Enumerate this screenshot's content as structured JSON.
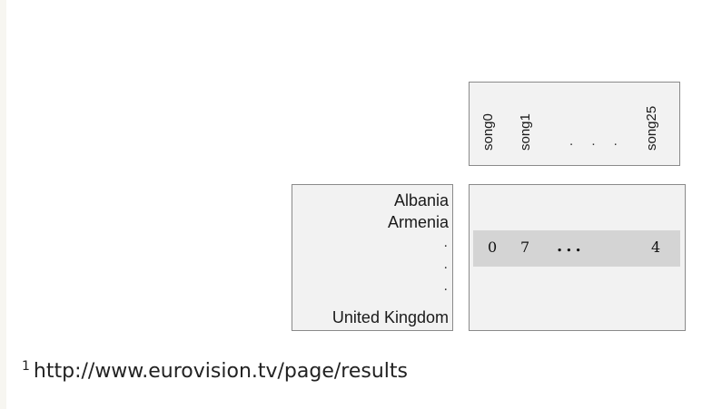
{
  "songs": {
    "labels": [
      "song0",
      "song1",
      "song25"
    ],
    "ellipsis": ". . ."
  },
  "countries": {
    "first": "Albania",
    "second": "Armenia",
    "dots": [
      ".",
      ".",
      "."
    ],
    "last": "United Kingdom"
  },
  "matrix_row": {
    "values": [
      "0",
      "7",
      "4"
    ],
    "ellipsis": "..."
  },
  "footnote": {
    "marker": "1",
    "text": "http://www.eurovision.tv/page/results"
  },
  "colors": {
    "box_fill": "#f2f2f2",
    "box_border": "#8a8a8a",
    "row_highlight": "#d4d4d4"
  }
}
